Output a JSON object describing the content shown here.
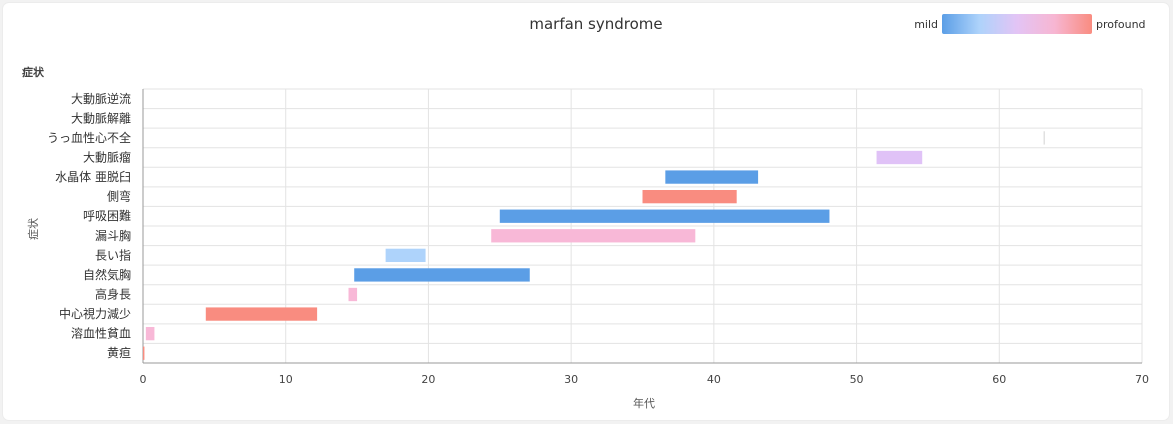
{
  "chart_data": {
    "type": "bar",
    "orientation": "horizontal",
    "title": "marfan syndrome",
    "xlabel": "年代",
    "ylabel": "症状",
    "ylabel_header": "症状",
    "xlim": [
      0,
      70
    ],
    "xticks": [
      0,
      10,
      20,
      30,
      40,
      50,
      60,
      70
    ],
    "grid": true,
    "legend": {
      "placement": "top-right",
      "low_label": "mild",
      "high_label": "profound",
      "gradient": [
        "#5b9ee6",
        "#aed3fb",
        "#e3c4f5",
        "#f7b6d2",
        "#f98c80"
      ]
    },
    "categories": [
      "大動脈逆流",
      "大動脈解離",
      "うっ血性心不全",
      "大動脈瘤",
      "水晶体 亜脱臼",
      "側弯",
      "呼吸困難",
      "漏斗胸",
      "長い指",
      "自然気胸",
      "高身長",
      "中心視力減少",
      "溶血性貧血",
      "黄疸"
    ],
    "bars": [
      {
        "category": "大動脈逆流",
        "start": null,
        "end": null,
        "color": null
      },
      {
        "category": "大動脈解離",
        "start": null,
        "end": null,
        "color": null
      },
      {
        "category": "うっ血性心不全",
        "start": 63.1,
        "end": 63.2,
        "color": "#e0e0e0"
      },
      {
        "category": "大動脈瘤",
        "start": 51.4,
        "end": 54.6,
        "color": "#e0c2f7"
      },
      {
        "category": "水晶体 亜脱臼",
        "start": 36.6,
        "end": 43.1,
        "color": "#5b9ee6"
      },
      {
        "category": "側弯",
        "start": 35.0,
        "end": 41.6,
        "color": "#f98c80"
      },
      {
        "category": "呼吸困難",
        "start": 25.0,
        "end": 48.1,
        "color": "#5b9ee6"
      },
      {
        "category": "漏斗胸",
        "start": 24.4,
        "end": 38.7,
        "color": "#f8b8d7"
      },
      {
        "category": "長い指",
        "start": 17.0,
        "end": 19.8,
        "color": "#aed3fb"
      },
      {
        "category": "自然気胸",
        "start": 14.8,
        "end": 27.1,
        "color": "#5b9ee6"
      },
      {
        "category": "高身長",
        "start": 14.4,
        "end": 15.0,
        "color": "#f8b8d7"
      },
      {
        "category": "中心視力減少",
        "start": 4.4,
        "end": 12.2,
        "color": "#f98c80"
      },
      {
        "category": "溶血性貧血",
        "start": 0.2,
        "end": 0.8,
        "color": "#f8b8d7"
      },
      {
        "category": "黄疸",
        "start": 0.0,
        "end": 0.1,
        "color": "#f98c80"
      }
    ]
  }
}
